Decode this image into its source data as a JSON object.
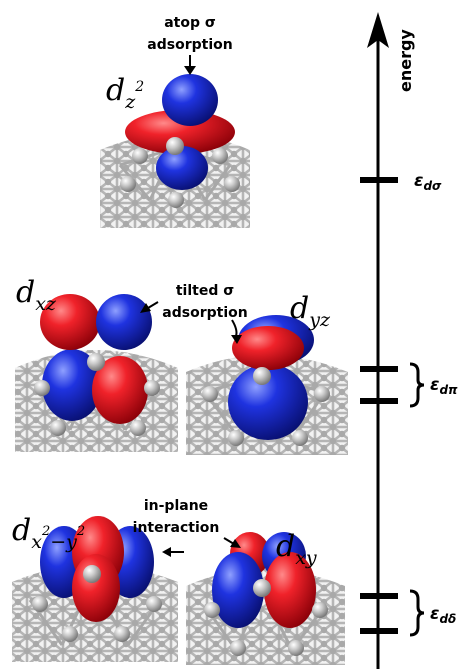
{
  "axis": {
    "label": "energy"
  },
  "orbitals": {
    "dz2": {
      "base": "d",
      "sub": "z",
      "sup": "2"
    },
    "dxz": {
      "base": "d",
      "sub": "xz"
    },
    "dyz": {
      "base": "d",
      "sub": "yz"
    },
    "dx2y2": {
      "base": "d",
      "sub_a": "x",
      "sup": "2",
      "sub_b": "−y",
      "sup2": "2"
    },
    "dxy": {
      "base": "d",
      "sub": "xy"
    }
  },
  "annotations": {
    "atop_line1": "atop σ",
    "atop_line2": "adsorption",
    "tilted_line1": "tilted σ",
    "tilted_line2": "adsorption",
    "inplane_line1": "in-plane",
    "inplane_line2": "interaction"
  },
  "levels": {
    "sigma": {
      "base": "ε",
      "sub": "dσ"
    },
    "pi": {
      "base": "ε",
      "sub": "dπ"
    },
    "delta": {
      "base": "ε",
      "sub": "dδ"
    }
  },
  "colors": {
    "positive_lobe": "#e8101a",
    "negative_lobe": "#1a2bd6",
    "metal": "#bdbdbd",
    "axis": "#000000"
  }
}
